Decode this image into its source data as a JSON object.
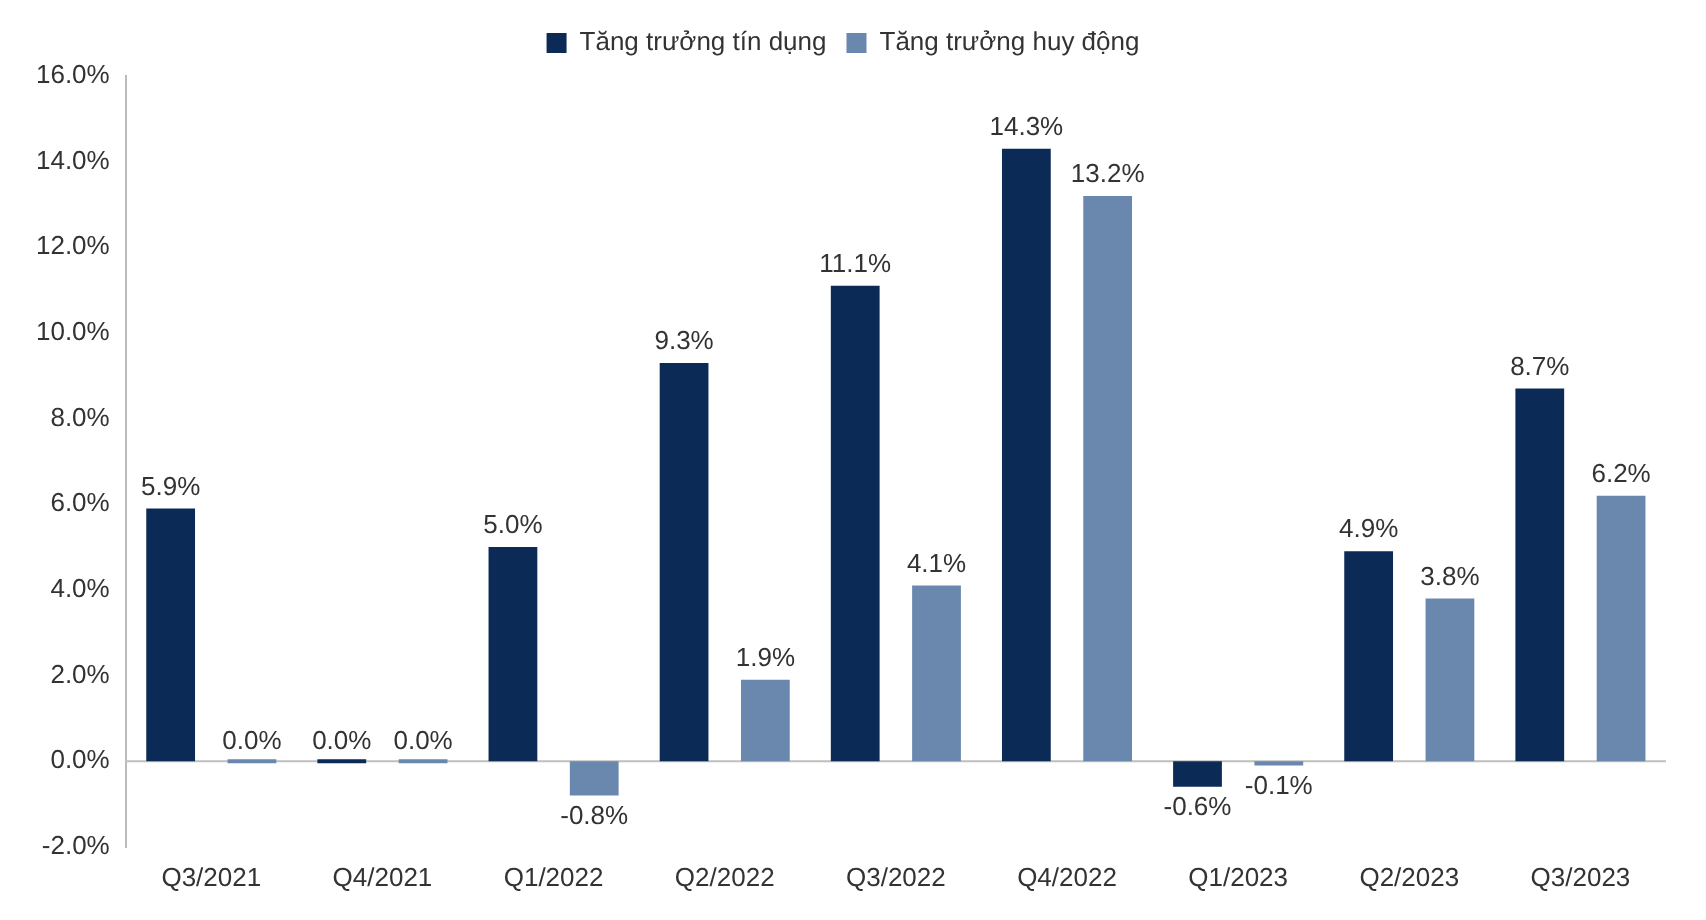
{
  "chart_data": {
    "type": "bar",
    "categories": [
      "Q3/2021",
      "Q4/2021",
      "Q1/2022",
      "Q2/2022",
      "Q3/2022",
      "Q4/2022",
      "Q1/2023",
      "Q2/2023",
      "Q3/2023"
    ],
    "series": [
      {
        "name": "Tăng trưởng tín dụng",
        "color": "#0b2a55",
        "values": [
          5.9,
          0.0,
          5.0,
          9.3,
          11.1,
          14.3,
          -0.6,
          4.9,
          8.7
        ],
        "value_labels": [
          "5.9%",
          "0.0%",
          "5.0%",
          "9.3%",
          "11.1%",
          "14.3%",
          "-0.6%",
          "4.9%",
          "8.7%"
        ]
      },
      {
        "name": "Tăng trưởng huy động",
        "color": "#6a88ad",
        "values": [
          0.0,
          0.0,
          -0.8,
          1.9,
          4.1,
          13.2,
          -0.1,
          3.8,
          6.2
        ],
        "value_labels": [
          "0.0%",
          "0.0%",
          "-0.8%",
          "1.9%",
          "4.1%",
          "13.2%",
          "-0.1%",
          "3.8%",
          "6.2%"
        ]
      }
    ],
    "ylim": [
      -2,
      16
    ],
    "yticks": [
      {
        "value": -2,
        "label": "-2.0%"
      },
      {
        "value": 0,
        "label": "0.0%"
      },
      {
        "value": 2,
        "label": "2.0%"
      },
      {
        "value": 4,
        "label": "4.0%"
      },
      {
        "value": 6,
        "label": "6.0%"
      },
      {
        "value": 8,
        "label": "8.0%"
      },
      {
        "value": 10,
        "label": "10.0%"
      },
      {
        "value": 12,
        "label": "12.0%"
      },
      {
        "value": 14,
        "label": "14.0%"
      },
      {
        "value": 16,
        "label": "16.0%"
      }
    ],
    "ref_lines": [
      {
        "axis": "y",
        "value": 0,
        "color": "#bfbfbf"
      }
    ],
    "grid": false,
    "legend": "top"
  }
}
